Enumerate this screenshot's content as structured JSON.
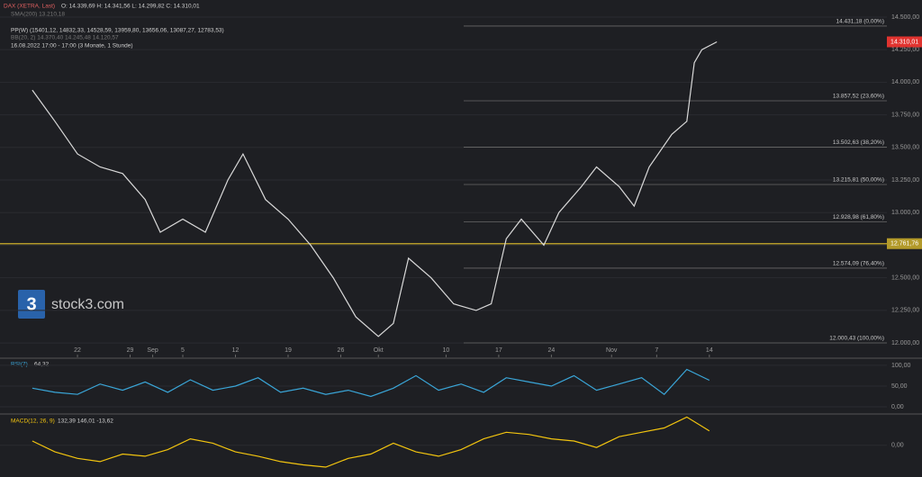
{
  "header": {
    "ohlc": "O: 14.339,69  H: 14.341,56  L: 14.299,82  C: 14.310,01",
    "sma": "SMA(200)  13.210,18",
    "pp": "PP(W)  (15401,12, 14832,33, 14528,59, 13959,80, 13656,06, 13087,27, 12783,53)",
    "bb": "BB(20, 2)  14.370,40  14.245,48  14.120,57",
    "period": "16.08.2022 17:00 - 17:00  (3 Monate, 1 Stunde)"
  },
  "logo": {
    "mark": "3",
    "text": "stock3.com"
  },
  "chart_data": [
    {
      "type": "line",
      "x": [
        0,
        3,
        6,
        9,
        12,
        15,
        17,
        20,
        23,
        26,
        28,
        31,
        34,
        37,
        40,
        43,
        46,
        48,
        50,
        53,
        56,
        59,
        61,
        63,
        65,
        68,
        70,
        73,
        75,
        78,
        80,
        82,
        85,
        87,
        88,
        89,
        91
      ],
      "series": [
        {
          "name": "DAX (XETRA, Last)",
          "color": "#d9d9d9",
          "values": [
            13940,
            13700,
            13450,
            13350,
            13300,
            13100,
            12850,
            12950,
            12850,
            13250,
            13450,
            13100,
            12950,
            12750,
            12500,
            12200,
            12050,
            12150,
            12650,
            12500,
            12300,
            12250,
            12300,
            12800,
            12950,
            12750,
            13000,
            13200,
            13350,
            13200,
            13050,
            13350,
            13600,
            13700,
            14150,
            14250,
            14310
          ]
        }
      ],
      "xlim": [
        -4.3,
        113.6
      ],
      "xticks": [
        {
          "value": 6,
          "label": "22"
        },
        {
          "value": 13,
          "label": "29"
        },
        {
          "value": 16,
          "label": "Sep"
        },
        {
          "value": 20,
          "label": "5"
        },
        {
          "value": 27,
          "label": "12"
        },
        {
          "value": 34,
          "label": "19"
        },
        {
          "value": 41,
          "label": "26"
        },
        {
          "value": 46,
          "label": "Okt"
        },
        {
          "value": 55,
          "label": "10"
        },
        {
          "value": 62,
          "label": "17"
        },
        {
          "value": 69,
          "label": "24"
        },
        {
          "value": 77,
          "label": "Nov"
        },
        {
          "value": 83,
          "label": "7"
        },
        {
          "value": 90,
          "label": "14"
        }
      ],
      "ylim": [
        11890,
        14631
      ],
      "yticks": [
        {
          "value": 12000,
          "label": "12.000,00"
        },
        {
          "value": 12250,
          "label": "12.250,00"
        },
        {
          "value": 12500,
          "label": "12.500,00"
        },
        {
          "value": 12750,
          "label": "12.750,00"
        },
        {
          "value": 13000,
          "label": "13.000,00"
        },
        {
          "value": 13250,
          "label": "13.250,00"
        },
        {
          "value": 13500,
          "label": "13.500,00"
        },
        {
          "value": 13750,
          "label": "13.750,00"
        },
        {
          "value": 14000,
          "label": "14.000,00"
        },
        {
          "value": 14250,
          "label": "14.250,00"
        },
        {
          "value": 14500,
          "label": "14.500,00"
        }
      ],
      "levels": [
        {
          "value": 14431.18,
          "label": "14.431,18 (0,00%)"
        },
        {
          "value": 13857.52,
          "label": "13.857,52 (23,60%)"
        },
        {
          "value": 13502.63,
          "label": "13.502,63 (38,20%)"
        },
        {
          "value": 13215.81,
          "label": "13.215,81 (50,00%)"
        },
        {
          "value": 12928.98,
          "label": "12.928,98 (61,80%)"
        },
        {
          "value": 12574.09,
          "label": "12.574,09 (76,40%)"
        },
        {
          "value": 12000.43,
          "label": "12.000,43 (100,00%)"
        }
      ],
      "last_price": {
        "value": 14310.01,
        "label": "14.310,01",
        "color": "#e0332f"
      },
      "marked_price": {
        "value": 12761.76,
        "label": "12.761,76",
        "color": "#b39a2a"
      }
    },
    {
      "type": "line",
      "title": "RSI(7)",
      "readout": "64,32",
      "x": [
        0,
        3,
        6,
        9,
        12,
        15,
        18,
        21,
        24,
        27,
        30,
        33,
        36,
        39,
        42,
        45,
        48,
        51,
        54,
        57,
        60,
        63,
        66,
        69,
        72,
        75,
        78,
        81,
        84,
        87,
        90
      ],
      "series": [
        {
          "name": "RSI",
          "color": "#3aa6d8",
          "values": [
            45,
            35,
            30,
            55,
            40,
            60,
            35,
            65,
            40,
            50,
            70,
            35,
            45,
            30,
            40,
            25,
            45,
            75,
            40,
            55,
            35,
            70,
            60,
            50,
            75,
            40,
            55,
            70,
            30,
            90,
            64
          ]
        }
      ],
      "xlim": [
        -4.3,
        113.6
      ],
      "ylim": [
        -13,
        115
      ],
      "yticks": [
        {
          "value": 100,
          "label": "100,00"
        },
        {
          "value": 50,
          "label": "50,00"
        },
        {
          "value": 0,
          "label": "0,00"
        }
      ]
    },
    {
      "type": "line",
      "title": "MACD(12, 26, 9)",
      "readout": "132,39  146,01  -13,62",
      "x": [
        0,
        3,
        6,
        9,
        12,
        15,
        18,
        21,
        24,
        27,
        30,
        33,
        36,
        39,
        42,
        45,
        48,
        51,
        54,
        57,
        60,
        63,
        66,
        69,
        72,
        75,
        78,
        81,
        84,
        87,
        90
      ],
      "series": [
        {
          "name": "MACD",
          "color": "#f2c40f",
          "values": [
            40,
            -60,
            -120,
            -150,
            -80,
            -100,
            -40,
            60,
            20,
            -60,
            -100,
            -150,
            -180,
            -200,
            -120,
            -80,
            20,
            -60,
            -100,
            -40,
            60,
            120,
            100,
            60,
            40,
            -20,
            80,
            120,
            160,
            260,
            132.39
          ]
        }
      ],
      "xlim": [
        -4.3,
        113.6
      ],
      "ylim": [
        -250,
        280
      ],
      "yticks": [
        {
          "value": 0,
          "label": "0,00"
        }
      ]
    }
  ]
}
